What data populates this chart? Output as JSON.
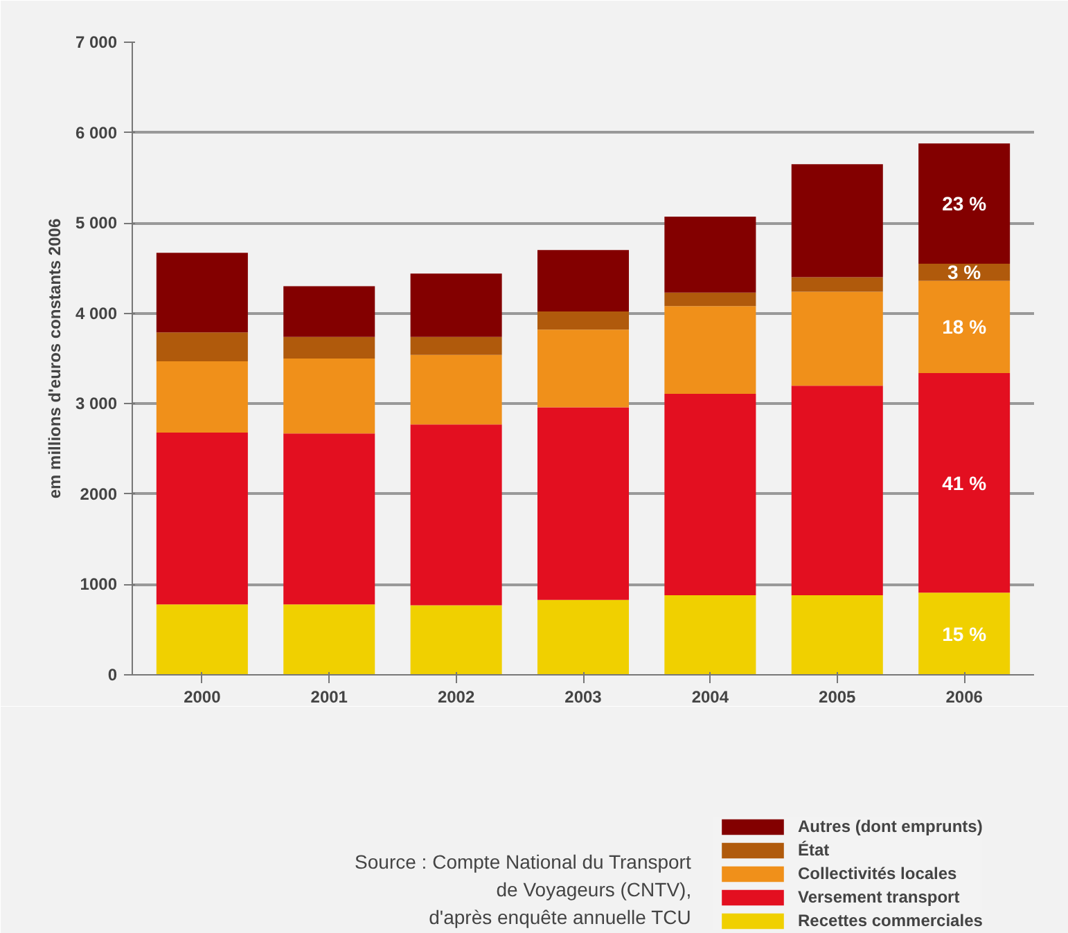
{
  "chart_data": {
    "type": "bar",
    "stacked": true,
    "ylabel": "em millions d'euros constants 2006",
    "categories": [
      "2000",
      "2001",
      "2002",
      "2003",
      "2004",
      "2005",
      "2006"
    ],
    "series": [
      {
        "name": "Recettes commerciales",
        "color": "#f0d000",
        "values": [
          780,
          780,
          770,
          830,
          880,
          880,
          910
        ]
      },
      {
        "name": "Versement transport",
        "color": "#e30f20",
        "values": [
          1900,
          1890,
          2000,
          2130,
          2230,
          2320,
          2430
        ]
      },
      {
        "name": "Collectivités locales",
        "color": "#f0901a",
        "values": [
          790,
          830,
          770,
          860,
          970,
          1040,
          1020
        ]
      },
      {
        "name": "État",
        "color": "#b05a0c",
        "values": [
          320,
          240,
          200,
          200,
          150,
          160,
          190
        ]
      },
      {
        "name": "Autres (dont emprunts)",
        "color": "#830000",
        "values": [
          880,
          560,
          700,
          680,
          840,
          1250,
          1330
        ]
      }
    ],
    "ylim": [
      0,
      7000
    ],
    "yticks": [
      0,
      {
        "value": 1000,
        "label": "1000"
      },
      {
        "value": 2000,
        "label": "2000"
      },
      {
        "value": 3000,
        "label": "3 000"
      },
      {
        "value": 4000,
        "label": "4 000"
      },
      {
        "value": 5000,
        "label": "5 000"
      },
      {
        "value": 6000,
        "label": "6 000"
      },
      {
        "value": 7000,
        "label": "7 000"
      }
    ],
    "grid": "y",
    "legend": "bottom right",
    "annotations": [
      "Source : Compte National du Transport\nde Voyageurs (CNTV),\nd'après enquête annuelle TCU",
      "15 %",
      "41 %",
      "18 %",
      "3 %",
      "23 %"
    ]
  }
}
